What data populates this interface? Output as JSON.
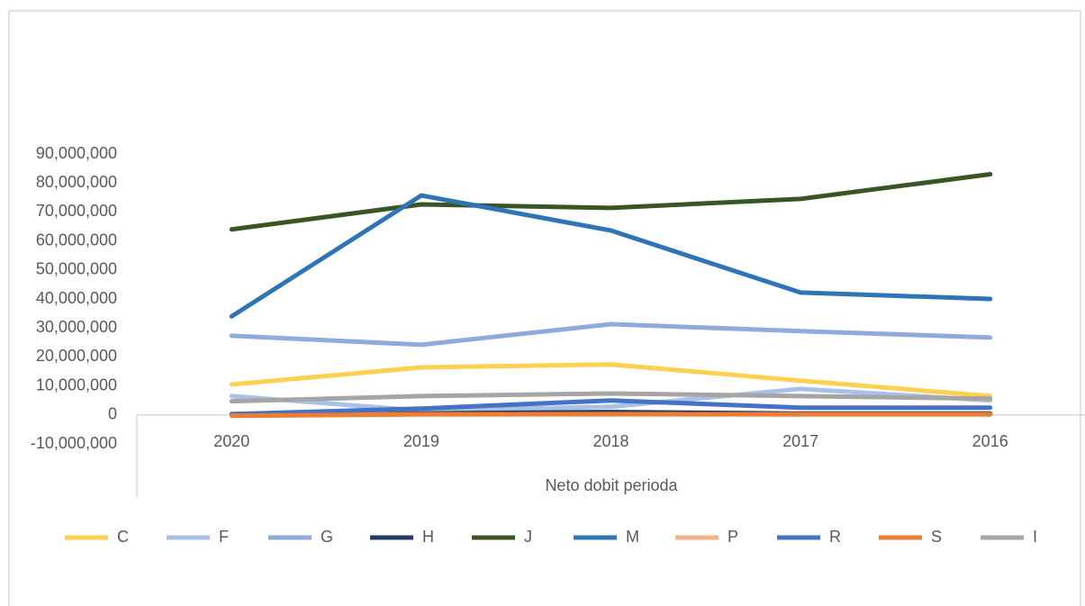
{
  "chart_data": {
    "type": "line",
    "x_label": "Neto dobit perioda",
    "categories": [
      "2020",
      "2019",
      "2018",
      "2017",
      "2016"
    ],
    "series": [
      {
        "name": "C",
        "color": "#ffd04f",
        "values": [
          10500000,
          16400000,
          17400000,
          11800000,
          6500000
        ]
      },
      {
        "name": "F",
        "color": "#a9c0e8",
        "values": [
          6500000,
          1500000,
          2800000,
          9000000,
          5000000
        ]
      },
      {
        "name": "G",
        "color": "#8faadc",
        "values": [
          27300000,
          24200000,
          31300000,
          28900000,
          26700000
        ]
      },
      {
        "name": "H",
        "color": "#1f3864",
        "values": [
          300000,
          500000,
          1000000,
          500000,
          500000
        ]
      },
      {
        "name": "J",
        "color": "#375623",
        "values": [
          64000000,
          72600000,
          71400000,
          74500000,
          83000000
        ]
      },
      {
        "name": "M",
        "color": "#2e75b6",
        "values": [
          34000000,
          75700000,
          63600000,
          42200000,
          40000000
        ]
      },
      {
        "name": "P",
        "color": "#f4b183",
        "values": [
          200000,
          200000,
          200000,
          200000,
          200000
        ]
      },
      {
        "name": "R",
        "color": "#4472c4",
        "values": [
          300000,
          2200000,
          5000000,
          2500000,
          2500000
        ]
      },
      {
        "name": "S",
        "color": "#ed7d31",
        "values": [
          -300000,
          200000,
          300000,
          200000,
          200000
        ]
      },
      {
        "name": "I",
        "color": "#a5a5a5",
        "values": [
          4700000,
          6500000,
          7400000,
          6500000,
          5600000
        ]
      }
    ],
    "ylim": [
      -10000000,
      90000000
    ],
    "yticks": [
      {
        "value": -10000000,
        "label": "-10,000,000"
      },
      0,
      {
        "value": 10000000,
        "label": "10,000,000"
      },
      {
        "value": 20000000,
        "label": "20,000,000"
      },
      {
        "value": 30000000,
        "label": "30,000,000"
      },
      {
        "value": 40000000,
        "label": "40,000,000"
      },
      {
        "value": 50000000,
        "label": "50,000,000"
      },
      {
        "value": 60000000,
        "label": "60,000,000"
      },
      {
        "value": 70000000,
        "label": "70,000,000"
      },
      {
        "value": 80000000,
        "label": "80,000,000"
      },
      {
        "value": 90000000,
        "label": "90,000,000"
      }
    ],
    "legend": "bottom"
  }
}
